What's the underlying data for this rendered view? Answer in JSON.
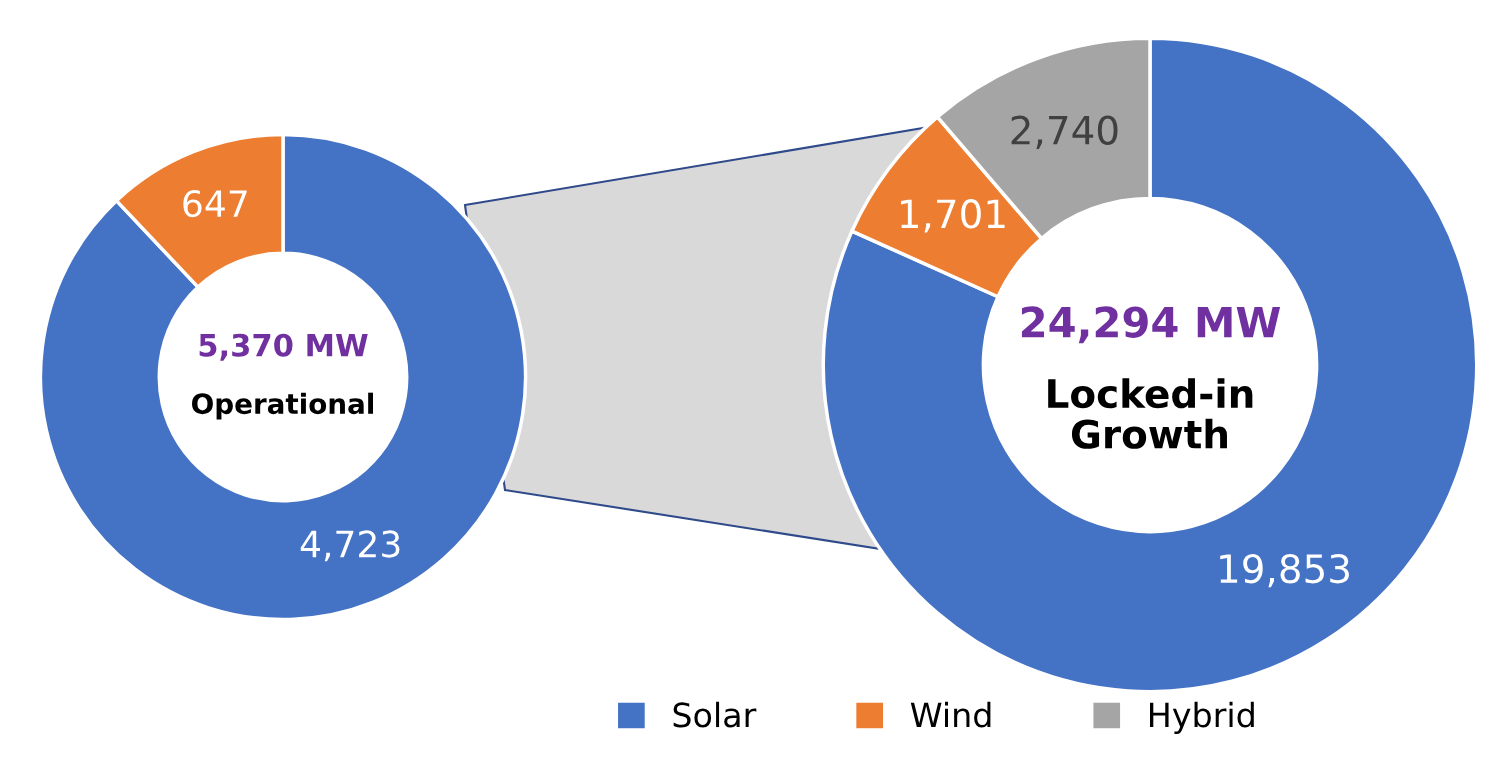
{
  "chart_data": [
    {
      "type": "donut",
      "categories": [
        null,
        null
      ],
      "values": [
        4723,
        647
      ],
      "value_labels": [
        "4,723",
        "647"
      ],
      "colors": [
        "#4472c4",
        "#ed7d31"
      ],
      "annotations": [
        "5,370 MW",
        "Operational"
      ]
    },
    {
      "type": "donut",
      "categories": [
        "Solar",
        "Wind",
        "Hybrid"
      ],
      "values": [
        19853,
        1701,
        2740
      ],
      "value_labels": [
        "19,853",
        "1,701",
        "2,740"
      ],
      "colors": [
        "#4472c4",
        "#ed7d31",
        "#a5a5a5"
      ],
      "annotations": [
        "24,294 MW",
        "Locked-in\nGrowth"
      ],
      "legend": "bottom"
    }
  ]
}
